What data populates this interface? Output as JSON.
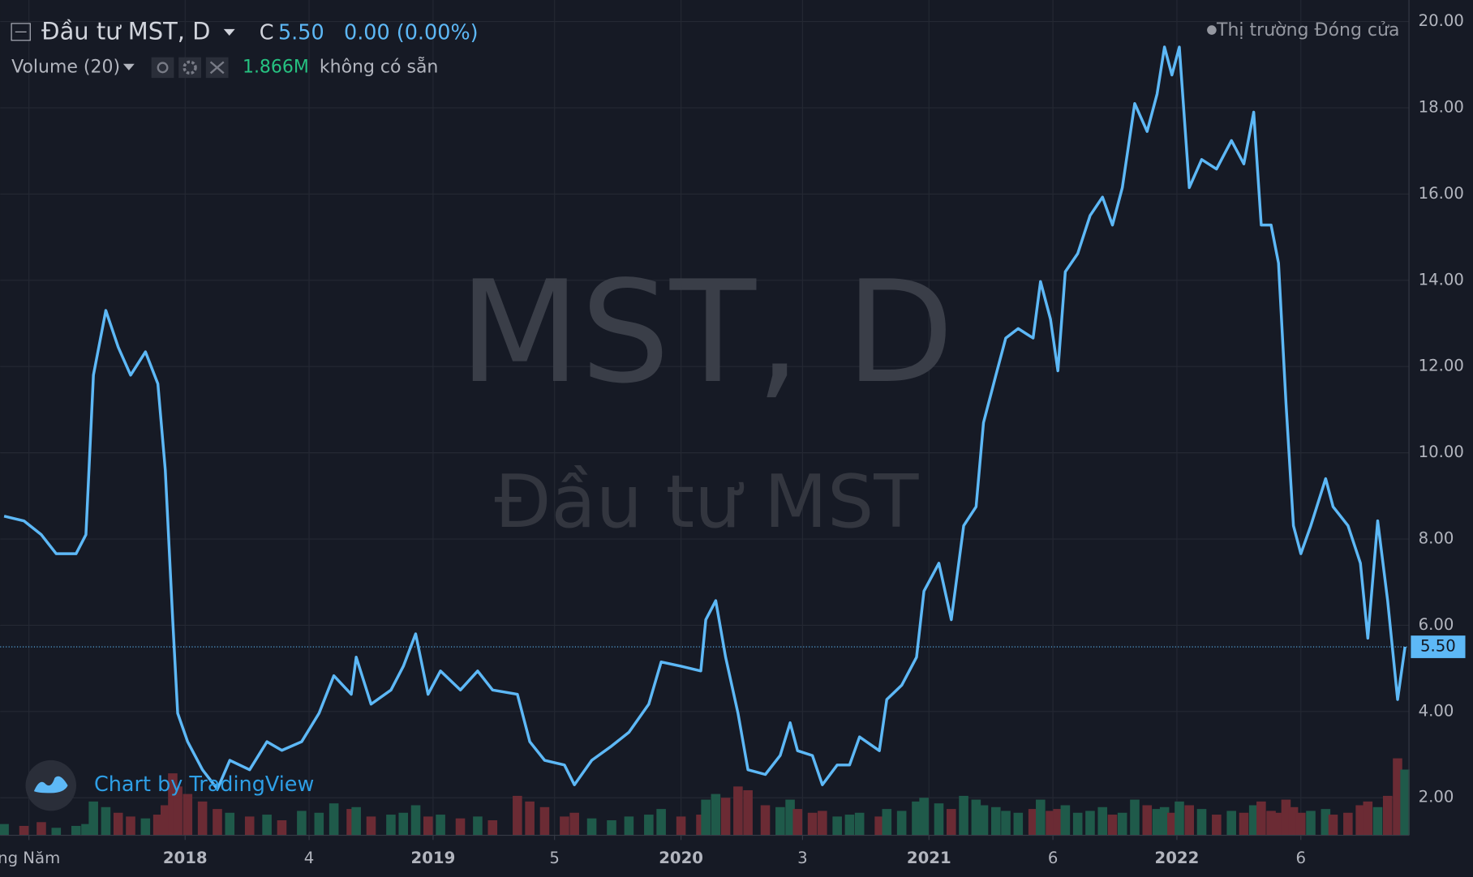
{
  "header": {
    "title": "Đầu tư MST, D",
    "close_prefix": "C",
    "close": "5.50",
    "change": "0.00 (0.00%)",
    "volume_name": "Volume (20)",
    "volume_value": "1.866M",
    "volume_note": "không có sẵn",
    "market_status": "Thị trường Đóng cửa",
    "credit": "Chart by TradingView"
  },
  "chart_data": {
    "type": "line",
    "watermark": "MST, D",
    "watermark_subtitle": "Đầu tư MST",
    "x": [
      2017.27,
      2017.35,
      2017.42,
      2017.48,
      2017.56,
      2017.6,
      2017.63,
      2017.68,
      2017.73,
      2017.78,
      2017.84,
      2017.89,
      2017.92,
      2017.95,
      2017.97,
      2018.01,
      2018.07,
      2018.13,
      2018.18,
      2018.26,
      2018.33,
      2018.39,
      2018.47,
      2018.54,
      2018.6,
      2018.67,
      2018.69,
      2018.75,
      2018.83,
      2018.88,
      2018.93,
      2018.98,
      2019.03,
      2019.11,
      2019.18,
      2019.24,
      2019.34,
      2019.39,
      2019.45,
      2019.53,
      2019.57,
      2019.64,
      2019.72,
      2019.79,
      2019.87,
      2019.92,
      2020.0,
      2020.08,
      2020.1,
      2020.14,
      2020.18,
      2020.23,
      2020.27,
      2020.34,
      2020.4,
      2020.44,
      2020.47,
      2020.53,
      2020.57,
      2020.63,
      2020.68,
      2020.72,
      2020.8,
      2020.83,
      2020.89,
      2020.95,
      2020.98,
      2021.04,
      2021.09,
      2021.14,
      2021.19,
      2021.22,
      2021.27,
      2021.31,
      2021.36,
      2021.42,
      2021.45,
      2021.49,
      2021.52,
      2021.55,
      2021.6,
      2021.65,
      2021.7,
      2021.74,
      2021.78,
      2021.83,
      2021.88,
      2021.92,
      2021.95,
      2021.98,
      2022.01,
      2022.05,
      2022.1,
      2022.16,
      2022.22,
      2022.27,
      2022.31,
      2022.34,
      2022.38,
      2022.41,
      2022.44,
      2022.47,
      2022.5,
      2022.54,
      2022.6,
      2022.63,
      2022.69,
      2022.74,
      2022.77,
      2022.81,
      2022.85,
      2022.89,
      2022.92
    ],
    "series": [
      {
        "name": "MST",
        "color": "#5db8f6",
        "values": [
          8.53,
          8.42,
          8.1,
          7.66,
          7.66,
          8.1,
          11.8,
          13.3,
          12.45,
          11.8,
          12.34,
          11.6,
          9.6,
          6.13,
          3.96,
          3.3,
          2.65,
          2.2,
          2.87,
          2.65,
          3.3,
          3.1,
          3.3,
          3.96,
          4.83,
          4.4,
          5.26,
          4.17,
          4.5,
          5.05,
          5.8,
          4.4,
          4.94,
          4.5,
          4.94,
          4.5,
          4.4,
          3.3,
          2.87,
          2.76,
          2.3,
          2.87,
          3.2,
          3.52,
          4.17,
          5.15,
          5.05,
          4.94,
          6.13,
          6.57,
          5.26,
          3.96,
          2.65,
          2.54,
          2.98,
          3.74,
          3.09,
          2.98,
          2.3,
          2.76,
          2.76,
          3.41,
          3.09,
          4.28,
          4.61,
          5.26,
          6.79,
          7.44,
          6.13,
          8.31,
          8.75,
          10.7,
          11.8,
          12.66,
          12.88,
          12.66,
          13.97,
          13.1,
          11.9,
          14.2,
          14.62,
          15.5,
          15.93,
          15.28,
          16.15,
          18.1,
          17.45,
          18.32,
          19.41,
          18.76,
          19.41,
          16.15,
          16.8,
          16.58,
          17.24,
          16.7,
          17.9,
          15.28,
          15.28,
          14.4,
          11.14,
          8.31,
          7.66,
          8.31,
          9.4,
          8.75,
          8.31,
          7.44,
          5.7,
          8.42,
          6.57,
          4.28,
          5.5
        ]
      }
    ],
    "volume": {
      "values": [
        0.6,
        0.5,
        0.7,
        0.4,
        0.5,
        0.6,
        1.8,
        1.5,
        1.2,
        1.0,
        0.9,
        1.1,
        1.6,
        3.3,
        2.6,
        2.2,
        1.8,
        1.4,
        1.2,
        1.0,
        1.1,
        0.8,
        1.3,
        1.2,
        1.7,
        1.4,
        1.5,
        1.0,
        1.1,
        1.2,
        1.6,
        1.0,
        1.1,
        0.9,
        1.0,
        0.8,
        2.1,
        1.8,
        1.5,
        1.0,
        1.2,
        0.9,
        0.8,
        1.0,
        1.1,
        1.4,
        1.0,
        1.1,
        1.9,
        2.2,
        2.0,
        2.6,
        2.4,
        1.6,
        1.5,
        1.9,
        1.4,
        1.2,
        1.3,
        1.0,
        1.1,
        1.2,
        1.0,
        1.4,
        1.3,
        1.8,
        2.0,
        1.7,
        1.4,
        2.1,
        1.9,
        1.6,
        1.5,
        1.3,
        1.2,
        1.4,
        1.9,
        1.3,
        1.4,
        1.6,
        1.2,
        1.3,
        1.5,
        1.1,
        1.2,
        1.9,
        1.6,
        1.4,
        1.5,
        1.2,
        1.8,
        1.6,
        1.4,
        1.1,
        1.3,
        1.2,
        1.6,
        1.8,
        1.3,
        1.2,
        1.9,
        1.5,
        1.2,
        1.3,
        1.4,
        1.1,
        1.2,
        1.6,
        1.8,
        1.5,
        2.1,
        4.1,
        3.5
      ],
      "colors": [
        "#1f5a4a",
        "#6b2b34",
        "#6b2b34",
        "#1f5a4a",
        "#1f5a4a",
        "#1f5a4a",
        "#1f5a4a",
        "#1f5a4a",
        "#6b2b34",
        "#6b2b34",
        "#1f5a4a",
        "#6b2b34",
        "#6b2b34",
        "#6b2b34",
        "#6b2b34",
        "#6b2b34",
        "#6b2b34",
        "#6b2b34",
        "#1f5a4a",
        "#6b2b34",
        "#1f5a4a",
        "#6b2b34",
        "#1f5a4a",
        "#1f5a4a",
        "#1f5a4a",
        "#6b2b34",
        "#1f5a4a",
        "#6b2b34",
        "#1f5a4a",
        "#1f5a4a",
        "#1f5a4a",
        "#6b2b34",
        "#1f5a4a",
        "#6b2b34",
        "#1f5a4a",
        "#6b2b34",
        "#6b2b34",
        "#6b2b34",
        "#6b2b34",
        "#6b2b34",
        "#6b2b34",
        "#1f5a4a",
        "#1f5a4a",
        "#1f5a4a",
        "#1f5a4a",
        "#1f5a4a",
        "#6b2b34",
        "#6b2b34",
        "#1f5a4a",
        "#1f5a4a",
        "#6b2b34",
        "#6b2b34",
        "#6b2b34",
        "#6b2b34",
        "#1f5a4a",
        "#1f5a4a",
        "#6b2b34",
        "#6b2b34",
        "#6b2b34",
        "#1f5a4a",
        "#1f5a4a",
        "#1f5a4a",
        "#6b2b34",
        "#1f5a4a",
        "#1f5a4a",
        "#1f5a4a",
        "#1f5a4a",
        "#1f5a4a",
        "#6b2b34",
        "#1f5a4a",
        "#1f5a4a",
        "#1f5a4a",
        "#1f5a4a",
        "#1f5a4a",
        "#1f5a4a",
        "#6b2b34",
        "#1f5a4a",
        "#6b2b34",
        "#6b2b34",
        "#1f5a4a",
        "#1f5a4a",
        "#1f5a4a",
        "#1f5a4a",
        "#6b2b34",
        "#1f5a4a",
        "#1f5a4a",
        "#6b2b34",
        "#1f5a4a",
        "#1f5a4a",
        "#6b2b34",
        "#1f5a4a",
        "#6b2b34",
        "#1f5a4a",
        "#6b2b34",
        "#1f5a4a",
        "#6b2b34",
        "#1f5a4a",
        "#6b2b34",
        "#6b2b34",
        "#6b2b34",
        "#6b2b34",
        "#6b2b34",
        "#6b2b34",
        "#1f5a4a",
        "#1f5a4a",
        "#6b2b34",
        "#6b2b34",
        "#6b2b34",
        "#6b2b34",
        "#1f5a4a",
        "#6b2b34",
        "#6b2b34",
        "#1f5a4a"
      ],
      "ylim": [
        0,
        10
      ]
    },
    "xlim": [
      2017.254,
      2022.936
    ],
    "xticks": [
      {
        "value": 2017.37,
        "label": "ng Năm"
      },
      2018,
      {
        "value": 2018.5,
        "label": "4"
      },
      2019,
      {
        "value": 2019.49,
        "label": "5"
      },
      2020,
      {
        "value": 2020.49,
        "label": "3"
      },
      2021,
      {
        "value": 2021.5,
        "label": "6"
      },
      2022,
      {
        "value": 2022.5,
        "label": "6"
      }
    ],
    "ylim": [
      1.13,
      20.5
    ],
    "yticks": [
      {
        "value": 2,
        "label": "2.00"
      },
      {
        "value": 4,
        "label": "4.00"
      },
      {
        "value": 6,
        "label": "6.00"
      },
      {
        "value": 8,
        "label": "8.00"
      },
      {
        "value": 10,
        "label": "10.00"
      },
      {
        "value": 12,
        "label": "12.00"
      },
      {
        "value": 14,
        "label": "14.00"
      },
      {
        "value": 16,
        "label": "16.00"
      },
      {
        "value": 18,
        "label": "18.00"
      },
      {
        "value": 20,
        "label": "20.00"
      }
    ],
    "grid": true
  }
}
